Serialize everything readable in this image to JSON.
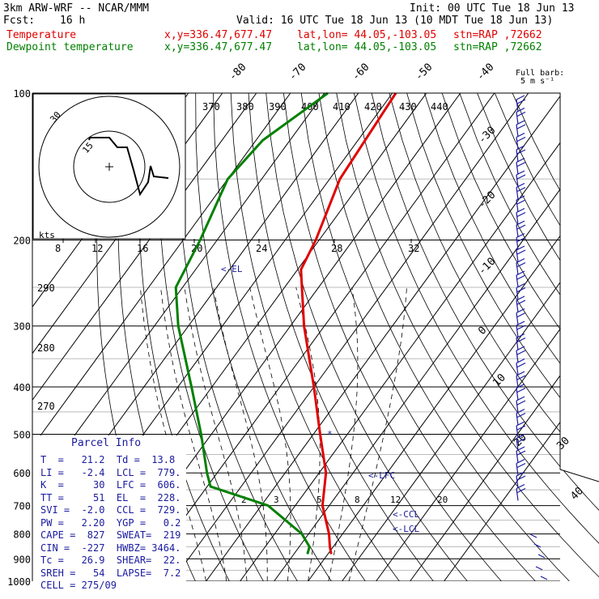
{
  "header": {
    "model": "3km ARW-WRF -- NCAR/MMM",
    "init": "Init: 00 UTC Tue 18 Jun 13",
    "fcst_label": "Fcst:",
    "fcst_value": "16 h",
    "valid": "Valid: 16 UTC Tue 18 Jun 13 (10 MDT Tue 18 Jun 13)",
    "temperature": {
      "name": "Temperature",
      "xy": "x,y=336.47,677.47",
      "latlon": "lat,lon= 44.05,-103.05",
      "stn": "stn=RAP ,72662"
    },
    "dewpoint": {
      "name": "Dewpoint temperature",
      "xy": "x,y=336.47,677.47",
      "latlon": "lat,lon= 44.05,-103.05",
      "stn": "stn=RAP ,72662"
    }
  },
  "full_barb": {
    "line1": "Full barb:",
    "line2": "5 m s⁻¹"
  },
  "parcel_info": {
    "title": "Parcel Info",
    "rows": [
      "T  =   21.2  Td =  13.8",
      "LI =   -2.4  LCL =  779.",
      "K  =     30  LFC =  606.",
      "TT =     51  EL  =  228.",
      "SVI =  -2.0  CCL =  729.",
      "PW =   2.20  YGP =   0.2",
      "CAPE =  827  SWEAT=  219",
      "CIN =  -227  HWBZ= 3464.",
      "Tc =   26.9  SHEAR=  22.",
      "SREH =   54  LAPSE=  7.2",
      "CELL = 275/09"
    ]
  },
  "colors": {
    "temperature": "#e00000",
    "dewpoint": "#008000",
    "annotation": "#1a1aa0",
    "barbs": "#1a1aa0",
    "hodograph": "#000000"
  },
  "chart_data": {
    "type": "line",
    "plot": "skew-T log-P diagram",
    "y_axis": {
      "scale": "log",
      "units": "hPa",
      "ticks": [
        100,
        200,
        300,
        400,
        500,
        600,
        700,
        800,
        900,
        1000
      ]
    },
    "isotherm_labels": [
      "-80",
      "-70",
      "-60",
      "-50",
      "-40",
      "-30",
      "-20",
      "-10",
      "0",
      "10",
      "20",
      "30",
      "40"
    ],
    "theta_labels": [
      "370",
      "380",
      "390",
      "400",
      "410",
      "420",
      "430",
      "440"
    ],
    "theta_labels_left": [
      "290",
      "280",
      "270"
    ],
    "mixing_ratio_labels": [
      "2",
      "3",
      "5",
      "8",
      "12",
      "20"
    ],
    "hodograph": {
      "speed_unit": "kts",
      "ring_labels": [
        "30",
        "15"
      ],
      "speed_axis_labels": [
        "8",
        "12",
        "16",
        "20",
        "24",
        "28",
        "32"
      ]
    },
    "series": [
      {
        "name": "Temperature",
        "color": "#e00000",
        "points": [
          [
            100,
            -59
          ],
          [
            150,
            -57
          ],
          [
            200,
            -51
          ],
          [
            230,
            -49
          ],
          [
            300,
            -36
          ],
          [
            400,
            -20
          ],
          [
            500,
            -8
          ],
          [
            600,
            2
          ],
          [
            700,
            8
          ],
          [
            800,
            16
          ],
          [
            850,
            19
          ],
          [
            880,
            21
          ]
        ]
      },
      {
        "name": "Dewpoint temperature",
        "color": "#008000",
        "points": [
          [
            100,
            -79
          ],
          [
            125,
            -88
          ],
          [
            150,
            -90
          ],
          [
            200,
            -85
          ],
          [
            250,
            -82
          ],
          [
            300,
            -73
          ],
          [
            400,
            -56
          ],
          [
            500,
            -43
          ],
          [
            600,
            -33
          ],
          [
            640,
            -29
          ],
          [
            700,
            -8
          ],
          [
            800,
            8
          ],
          [
            850,
            13
          ],
          [
            880,
            14
          ]
        ]
      }
    ],
    "annotations": [
      "EL",
      "LFC",
      "CCL",
      "LCL"
    ],
    "grid": true
  }
}
